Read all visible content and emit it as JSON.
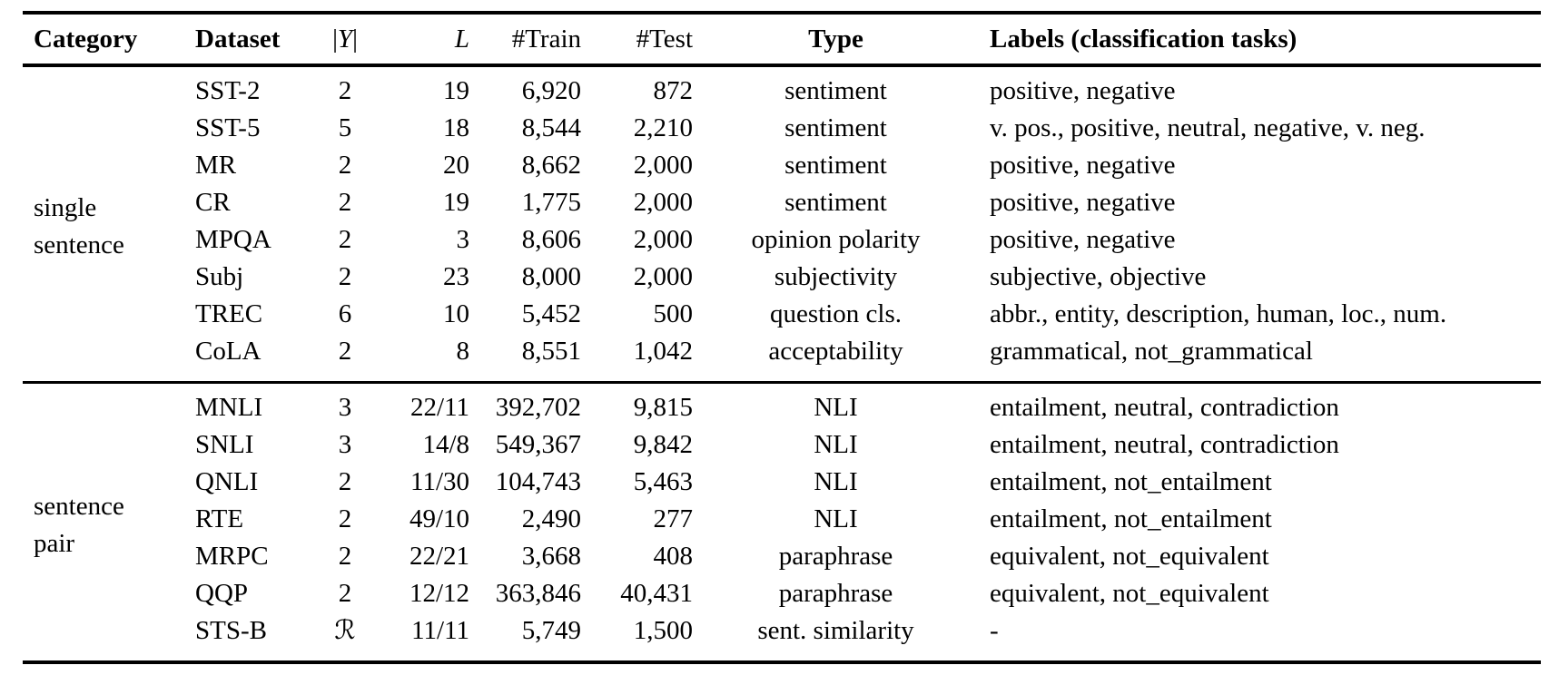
{
  "table": {
    "columns": [
      {
        "label": "Category"
      },
      {
        "label": "Dataset"
      },
      {
        "label_open": "|",
        "label_symbol": "Y",
        "label_close": "|"
      },
      {
        "label": "L"
      },
      {
        "label": "#Train"
      },
      {
        "label": "#Test"
      },
      {
        "label": "Type"
      },
      {
        "label": "Labels (classification tasks)"
      }
    ],
    "groups": [
      {
        "category": [
          "single",
          "sentence"
        ],
        "rows": [
          {
            "dataset": "SST-2",
            "num_classes": "2",
            "length": "19",
            "train": "6,920",
            "test": "872",
            "type": "sentiment",
            "labels": "positive, negative"
          },
          {
            "dataset": "SST-5",
            "num_classes": "5",
            "length": "18",
            "train": "8,544",
            "test": "2,210",
            "type": "sentiment",
            "labels": "v. pos., positive, neutral, negative, v. neg."
          },
          {
            "dataset": "MR",
            "num_classes": "2",
            "length": "20",
            "train": "8,662",
            "test": "2,000",
            "type": "sentiment",
            "labels": "positive, negative"
          },
          {
            "dataset": "CR",
            "num_classes": "2",
            "length": "19",
            "train": "1,775",
            "test": "2,000",
            "type": "sentiment",
            "labels": "positive, negative"
          },
          {
            "dataset": "MPQA",
            "num_classes": "2",
            "length": "3",
            "train": "8,606",
            "test": "2,000",
            "type": "opinion polarity",
            "labels": "positive, negative"
          },
          {
            "dataset": "Subj",
            "num_classes": "2",
            "length": "23",
            "train": "8,000",
            "test": "2,000",
            "type": "subjectivity",
            "labels": "subjective, objective"
          },
          {
            "dataset": "TREC",
            "num_classes": "6",
            "length": "10",
            "train": "5,452",
            "test": "500",
            "type": "question cls.",
            "labels": "abbr., entity, description, human, loc., num."
          },
          {
            "dataset": "CoLA",
            "num_classes": "2",
            "length": "8",
            "train": "8,551",
            "test": "1,042",
            "type": "acceptability",
            "labels": "grammatical, not_grammatical"
          }
        ]
      },
      {
        "category": [
          "sentence",
          "pair"
        ],
        "rows": [
          {
            "dataset": "MNLI",
            "num_classes": "3",
            "length": "22/11",
            "train": "392,702",
            "test": "9,815",
            "type": "NLI",
            "labels": "entailment, neutral, contradiction"
          },
          {
            "dataset": "SNLI",
            "num_classes": "3",
            "length": "14/8",
            "train": "549,367",
            "test": "9,842",
            "type": "NLI",
            "labels": "entailment, neutral, contradiction"
          },
          {
            "dataset": "QNLI",
            "num_classes": "2",
            "length": "11/30",
            "train": "104,743",
            "test": "5,463",
            "type": "NLI",
            "labels": "entailment, not_entailment"
          },
          {
            "dataset": "RTE",
            "num_classes": "2",
            "length": "49/10",
            "train": "2,490",
            "test": "277",
            "type": "NLI",
            "labels": "entailment, not_entailment"
          },
          {
            "dataset": "MRPC",
            "num_classes": "2",
            "length": "22/21",
            "train": "3,668",
            "test": "408",
            "type": "paraphrase",
            "labels": "equivalent, not_equivalent"
          },
          {
            "dataset": "QQP",
            "num_classes": "2",
            "length": "12/12",
            "train": "363,846",
            "test": "40,431",
            "type": "paraphrase",
            "labels": "equivalent, not_equivalent"
          },
          {
            "dataset": "STS-B",
            "num_classes": "ℛ",
            "length": "11/11",
            "train": "5,749",
            "test": "1,500",
            "type": "sent. similarity",
            "labels": "-"
          }
        ]
      }
    ]
  }
}
